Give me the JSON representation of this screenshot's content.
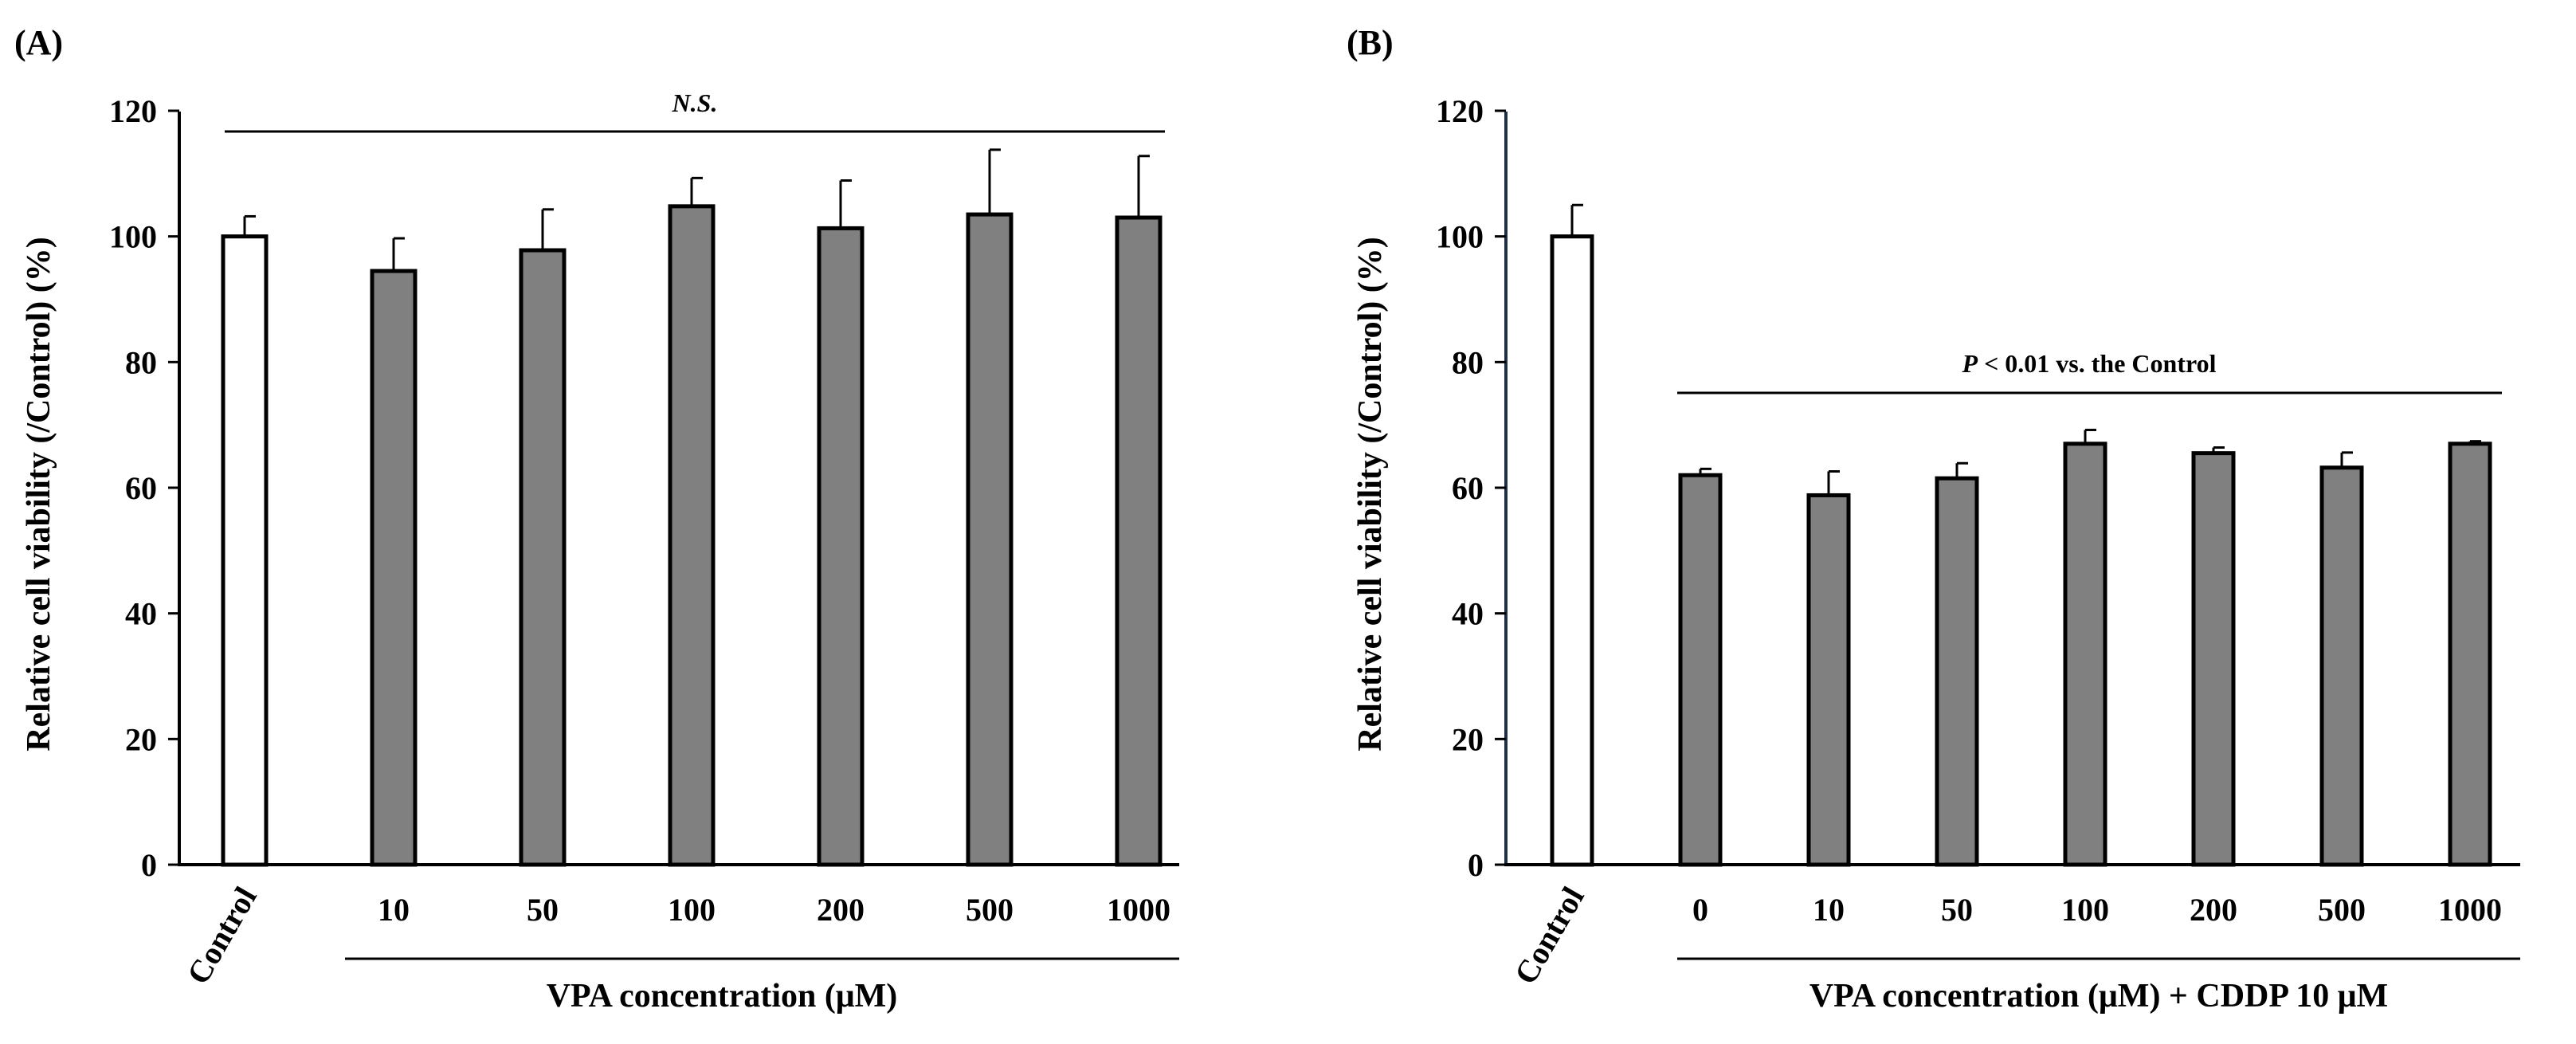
{
  "chart_data": [
    {
      "type": "bar",
      "panel_label": "(A)",
      "ylabel": "Relative cell viability (/Control) (%)",
      "xlabel": "VPA concentration (μM)",
      "ylim": [
        0,
        120
      ],
      "yticks": [
        "0",
        "20",
        "40",
        "60",
        "80",
        "100",
        "120"
      ],
      "categories": [
        "Control",
        "10",
        "50",
        "100",
        "200",
        "500",
        "1000"
      ],
      "values": [
        100,
        94.5,
        97.8,
        104.8,
        101.3,
        103.5,
        103
      ],
      "errors": [
        3.2,
        5.2,
        6.5,
        4.5,
        7.6,
        10.3,
        9.8
      ],
      "significance": "N.S.",
      "colors": {
        "control": "#ffffff",
        "treated": "#808080",
        "outline": "#000000"
      }
    },
    {
      "type": "bar",
      "panel_label": "(B)",
      "ylabel": "Relative cell viability (/Control) (%)",
      "xlabel": "VPA concentration (μM) + CDDP 10 μM",
      "ylim": [
        0,
        120
      ],
      "yticks": [
        "0",
        "20",
        "40",
        "60",
        "80",
        "100",
        "120"
      ],
      "categories": [
        "Control",
        "0",
        "10",
        "50",
        "100",
        "200",
        "500",
        "1000"
      ],
      "values": [
        100,
        62,
        58.8,
        61.5,
        67,
        65.5,
        63.2,
        67
      ],
      "errors": [
        5,
        1,
        3.8,
        2.4,
        2.2,
        0.9,
        2.4,
        0.4
      ],
      "significance": {
        "p": "P",
        "rest": " < 0.01 vs. the Control"
      },
      "colors": {
        "control": "#ffffff",
        "treated": "#808080",
        "outline": "#000000"
      }
    }
  ]
}
